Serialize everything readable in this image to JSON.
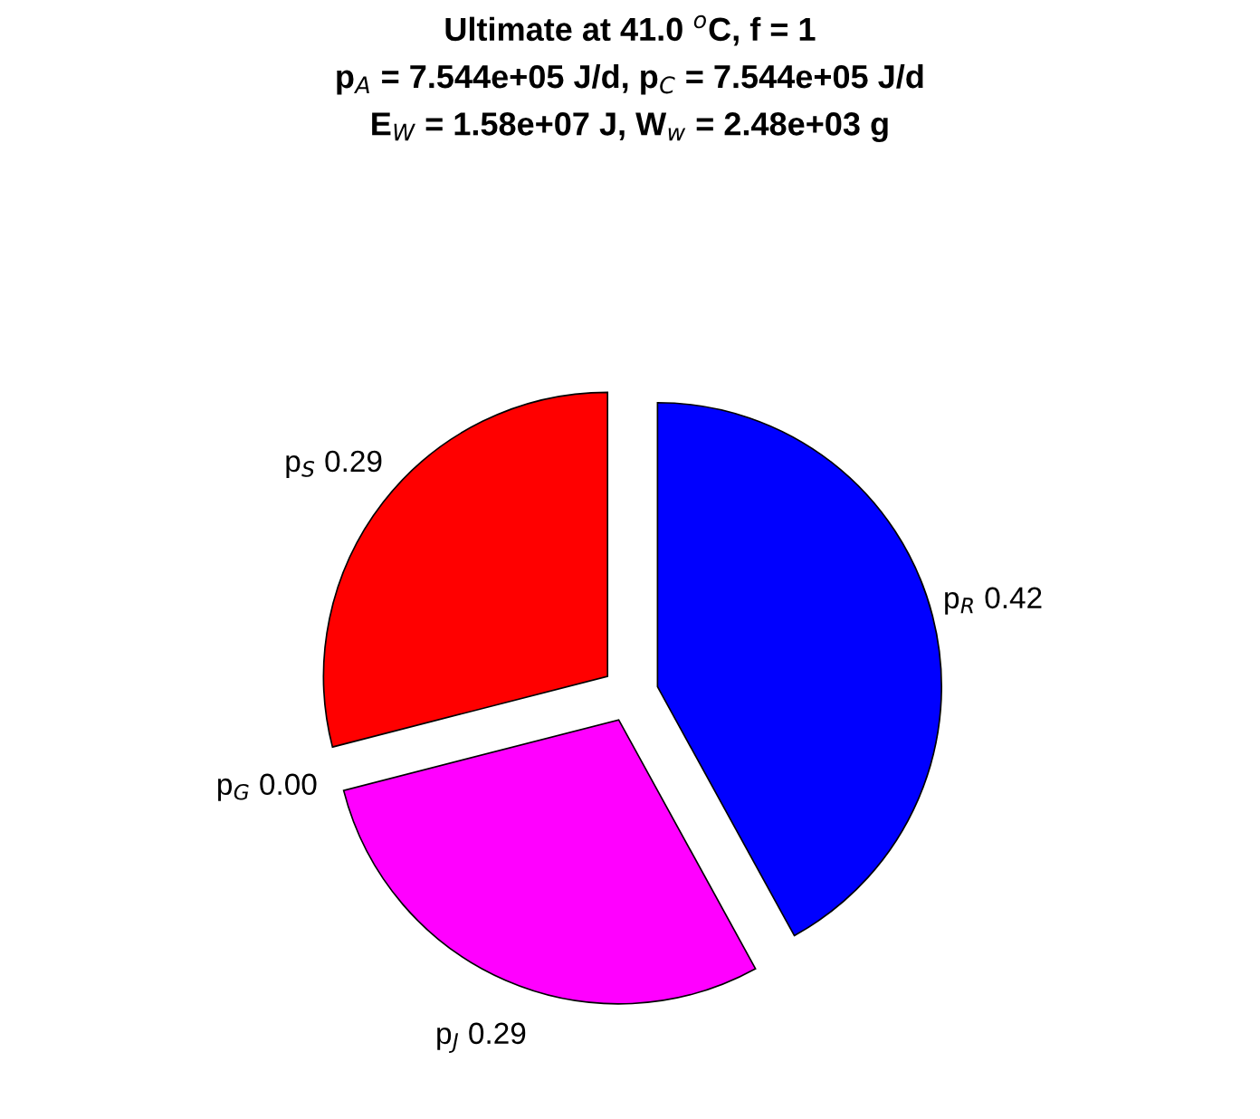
{
  "chart_data": {
    "type": "pie",
    "title": "Ultimate at 41.0 $^{o}$C, f = 1\np$_{A}$ = 7.544e+05 J/d, p$_{C}$ = 7.544e+05 J/d\nE$_{W}$ = 1.58e+07 J, W$_{w}$ = 2.48e+03 g",
    "categories": [
      "p$_{R}$",
      "p$_{J}$",
      "p$_{G}$",
      "p$_{S}$"
    ],
    "values": [
      0.42,
      0.29,
      0.0,
      0.29
    ],
    "value_labels": [
      "0.42",
      "0.29",
      "0.00",
      "0.29"
    ],
    "colors": [
      "#0000ff",
      "#ff00ff",
      "#ffffff",
      "#ff0000"
    ],
    "legend": false
  }
}
